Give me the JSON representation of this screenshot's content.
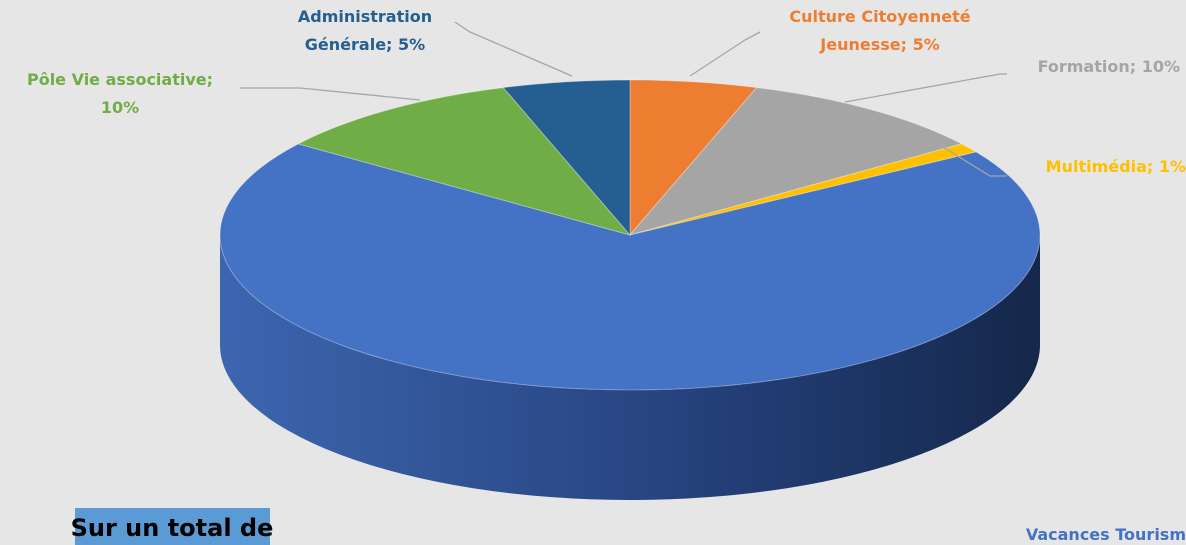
{
  "chart_data": {
    "type": "pie3d",
    "labels": [
      [
        "Culture Citoyenneté",
        "Jeunesse; 5%"
      ],
      [
        "Formation; 10%"
      ],
      [
        "Multimédia; 1%"
      ],
      [
        "Vacances Tourism"
      ],
      [
        "Pôle Vie associative;",
        "10%"
      ],
      [
        "Administration",
        "Générale; 5%"
      ]
    ],
    "values": [
      5,
      10,
      1,
      69,
      10,
      5
    ],
    "colors": [
      "#ED7D31",
      "#A5A5A5",
      "#FFC000",
      "#4472C4",
      "#70AD47",
      "#255E91"
    ],
    "annotation": "Sur un total de"
  }
}
